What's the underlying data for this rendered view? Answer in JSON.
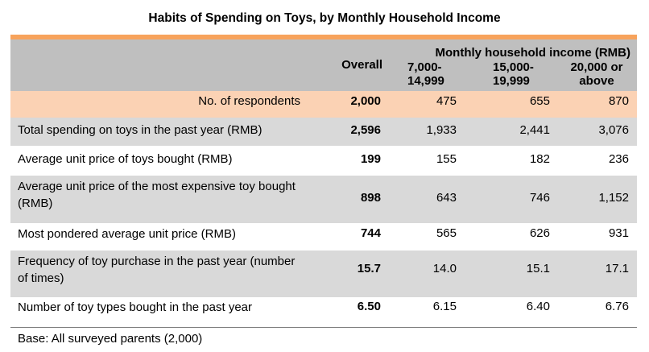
{
  "title": "Habits of Spending on Toys, by Monthly Household Income",
  "header": {
    "overall": "Overall",
    "group": "Monthly household income (RMB)",
    "col1": "7,000-\n14,999",
    "col2": "15,000-\n19,999",
    "col3": "20,000 or\nabove"
  },
  "rows": [
    {
      "label": "No. of respondents",
      "overall": "2,000",
      "c1": "475",
      "c2": "655",
      "c3": "870"
    },
    {
      "label": "Total spending on toys in the past year (RMB)",
      "overall": "2,596",
      "c1": "1,933",
      "c2": "2,441",
      "c3": "3,076"
    },
    {
      "label": "Average unit price of toys bought (RMB)",
      "overall": "199",
      "c1": "155",
      "c2": "182",
      "c3": "236"
    },
    {
      "label": "Average unit price of the most expensive toy bought (RMB)",
      "overall": "898",
      "c1": "643",
      "c2": "746",
      "c3": "1,152"
    },
    {
      "label": "Most pondered average unit price (RMB)",
      "overall": "744",
      "c1": "565",
      "c2": "626",
      "c3": "931"
    },
    {
      "label": "Frequency of toy purchase in the past year (number of times)",
      "overall": "15.7",
      "c1": "14.0",
      "c2": "15.1",
      "c3": "17.1"
    },
    {
      "label": "Number of toy types bought in the past year",
      "overall": "6.50",
      "c1": "6.15",
      "c2": "6.40",
      "c3": "6.76"
    }
  ],
  "footnote": "Base: All surveyed parents (2,000)",
  "colors": {
    "accent_bar": "#f7a35c",
    "header_bg": "#bfbfbf",
    "respondents_bg": "#fbd2b4",
    "stripe_bg": "#d9d9d9"
  }
}
